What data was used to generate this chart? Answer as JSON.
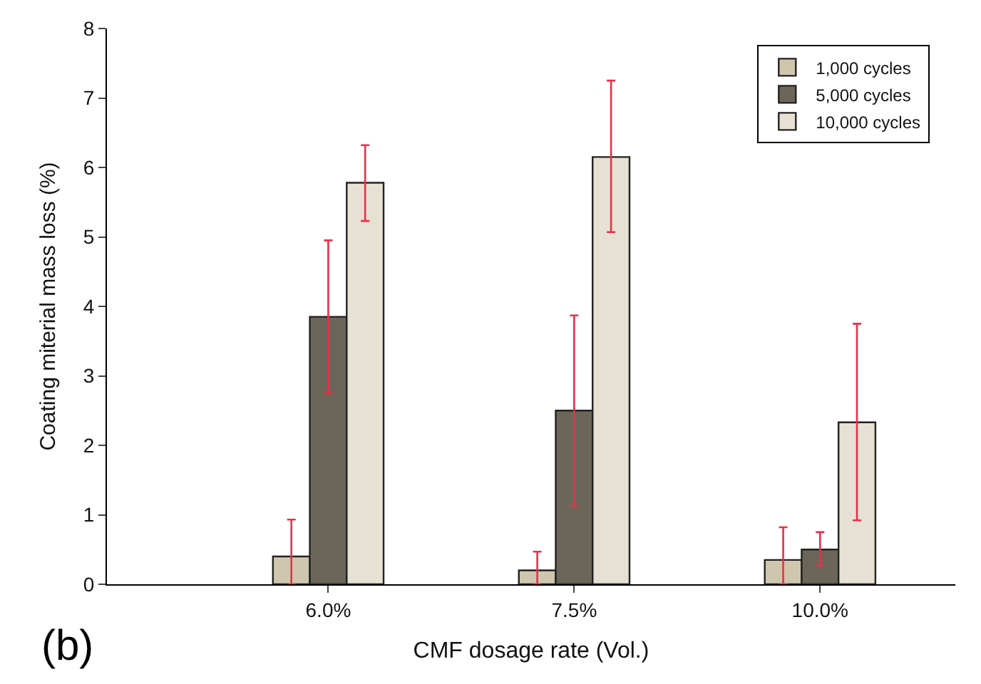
{
  "chart_data": {
    "type": "bar",
    "xlabel": "CMF dosage rate (Vol.)",
    "ylabel": "Coating miterial mass loss (%)",
    "categories": [
      "6.0%",
      "7.5%",
      "10.0%"
    ],
    "series": [
      {
        "name": "1,000 cycles",
        "color": "#cfc6ae",
        "values": [
          0.4,
          0.2,
          0.35
        ],
        "errors": [
          [
            0,
            0.93
          ],
          [
            0,
            0.47
          ],
          [
            0,
            0.82
          ]
        ]
      },
      {
        "name": "5,000 cycles",
        "color": "#6b6657",
        "values": [
          3.85,
          2.5,
          0.5
        ],
        "errors": [
          [
            2.75,
            4.95
          ],
          [
            1.13,
            3.87
          ],
          [
            0.27,
            0.75
          ]
        ]
      },
      {
        "name": "10,000 cycles",
        "color": "#e6e1d3",
        "values": [
          5.78,
          6.15,
          2.33
        ],
        "errors": [
          [
            5.23,
            6.32
          ],
          [
            5.07,
            7.25
          ],
          [
            0.92,
            3.75
          ]
        ]
      }
    ],
    "ylim": [
      0,
      8
    ],
    "yticks": [
      0,
      1,
      2,
      3,
      4,
      5,
      6,
      7,
      8
    ],
    "legend": "top right",
    "annotations": [
      "(b)"
    ]
  }
}
